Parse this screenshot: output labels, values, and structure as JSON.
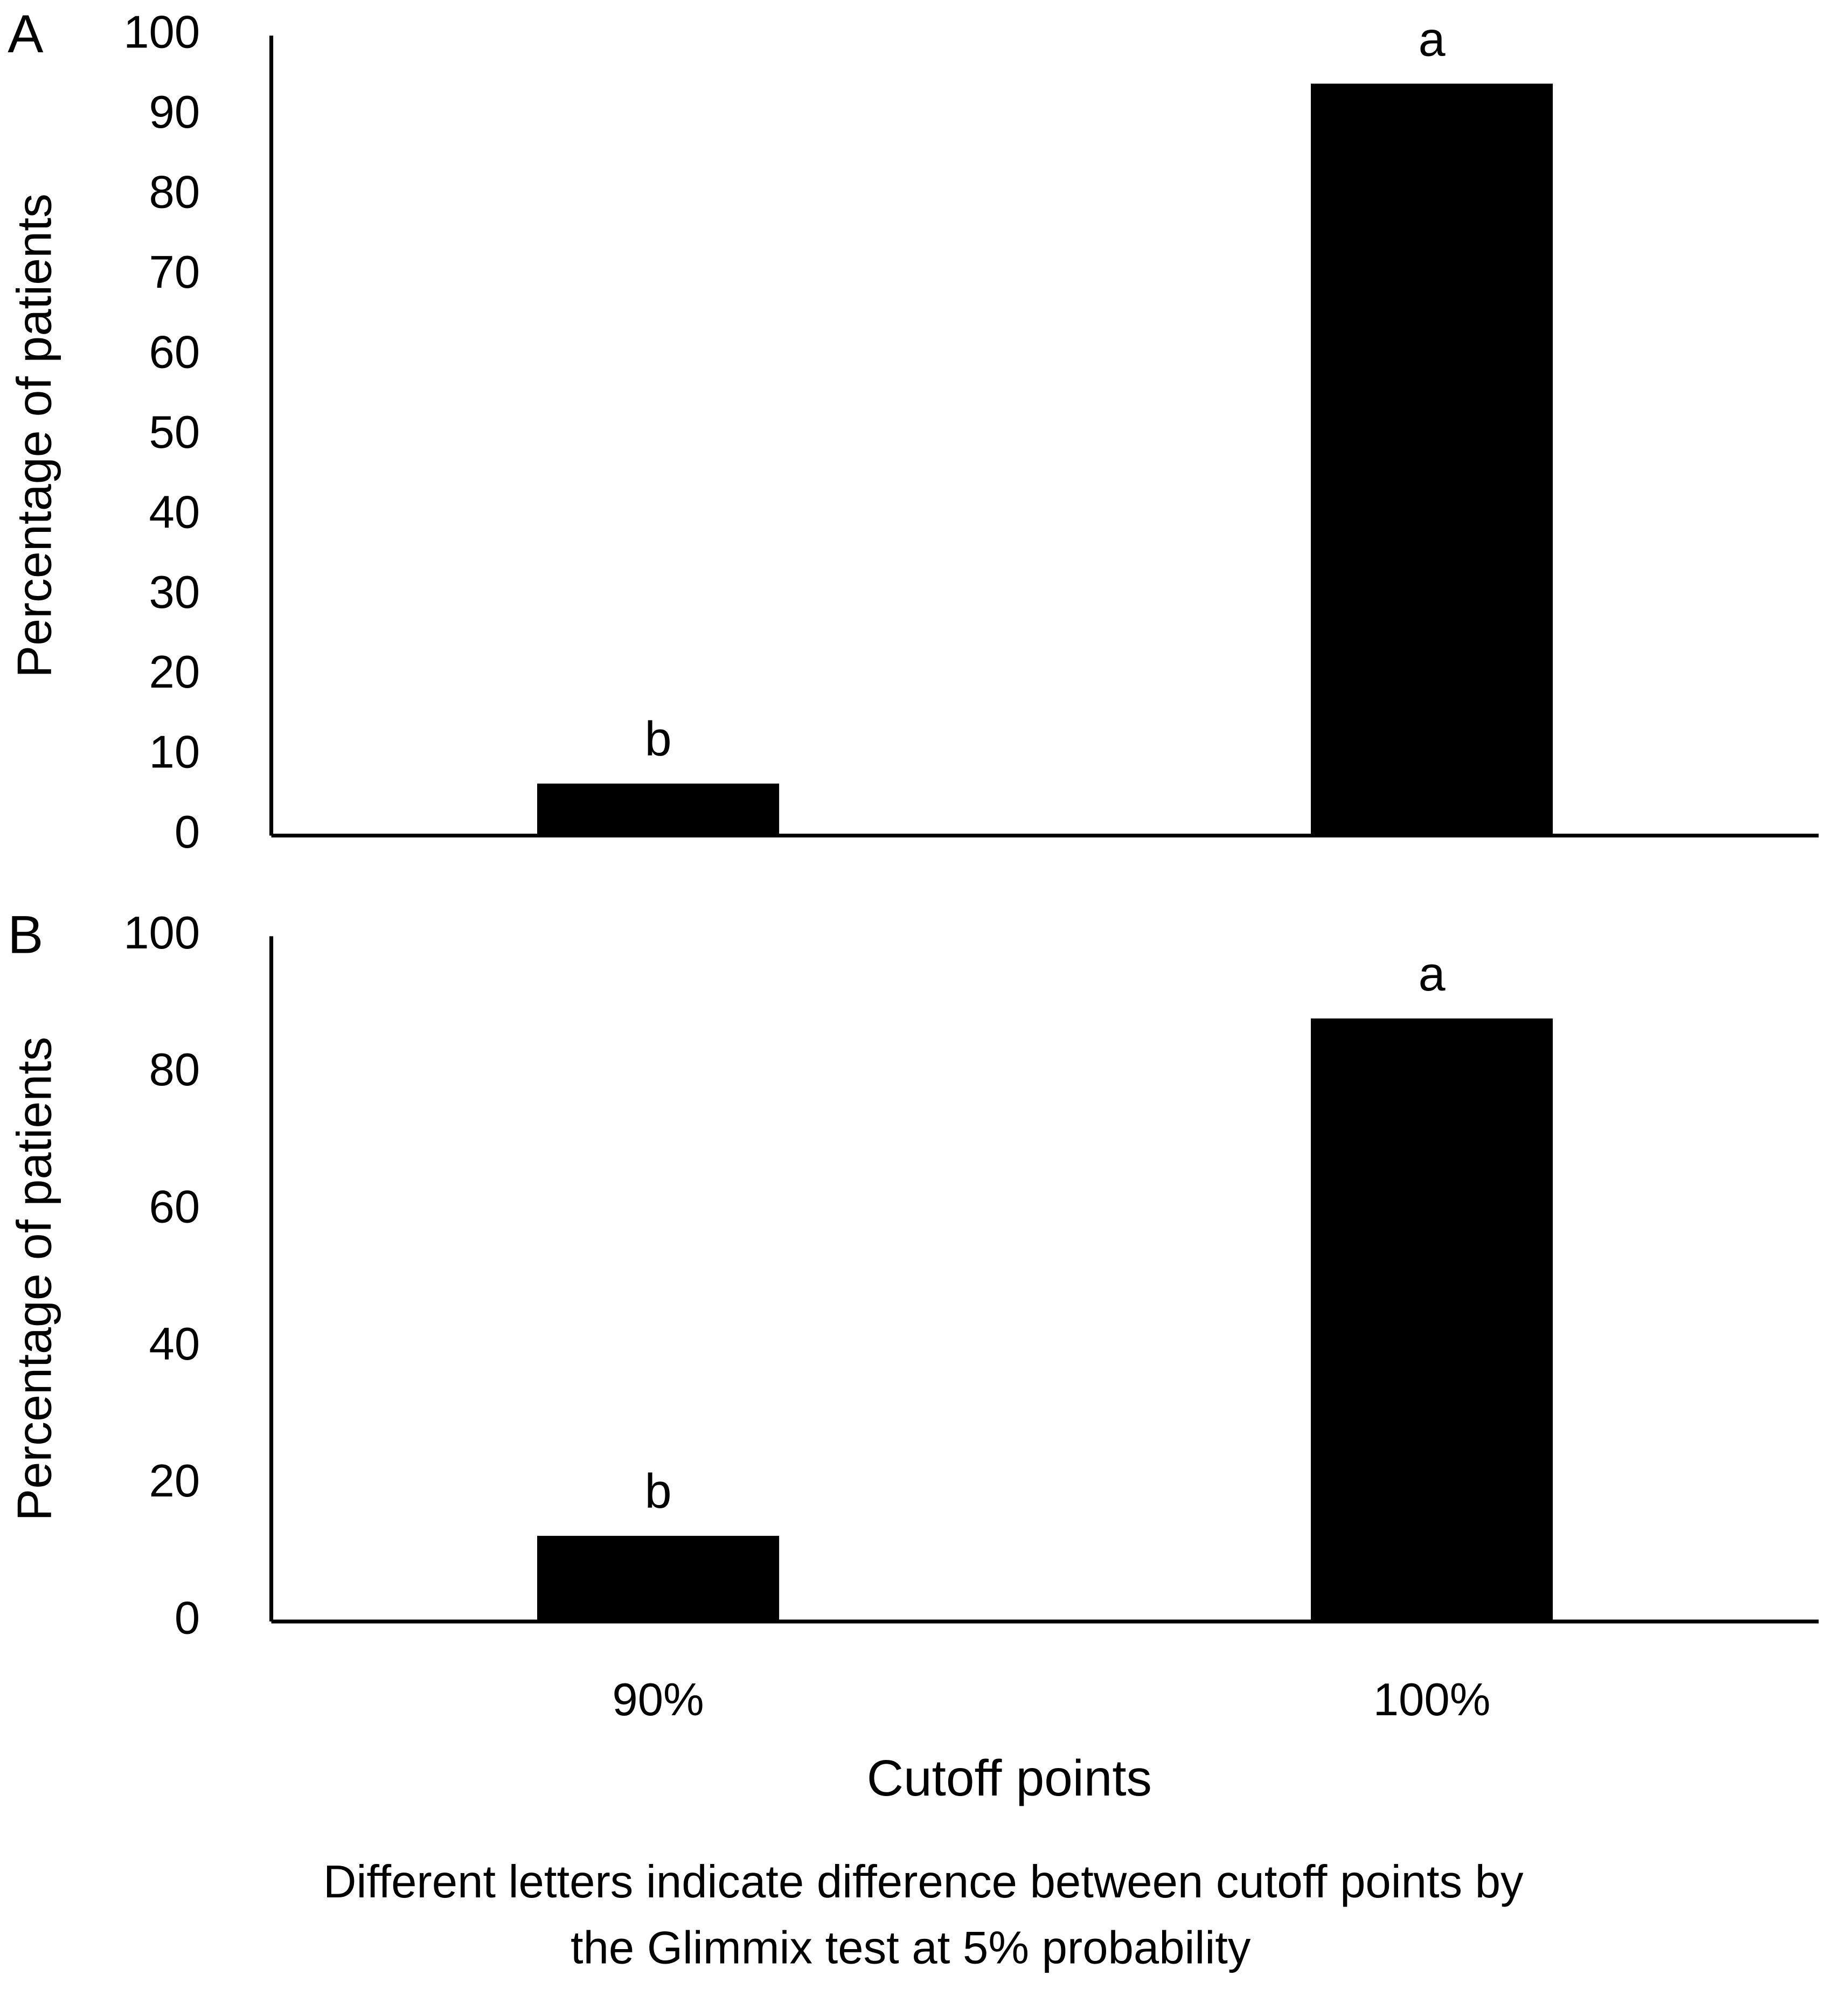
{
  "chart_data": [
    {
      "type": "bar",
      "panel": "A",
      "ylabel": "Percentage of patients",
      "categories": [
        null,
        null
      ],
      "values": [
        6.5,
        94
      ],
      "annotations": [
        "b",
        "a"
      ],
      "color": "#000000",
      "ylim": [
        0,
        100
      ],
      "yticks": [
        0,
        10,
        20,
        30,
        40,
        50,
        60,
        70,
        80,
        90,
        100
      ],
      "grid": false
    },
    {
      "type": "bar",
      "panel": "B",
      "ylabel": "Percentage of patients",
      "xlabel": "Cutoff points",
      "categories": [
        "90%",
        "100%"
      ],
      "values": [
        12.5,
        88
      ],
      "annotations": [
        "b",
        "a"
      ],
      "color": "#000000",
      "ylim": [
        0,
        100
      ],
      "yticks": [
        0,
        20,
        40,
        60,
        80,
        100
      ],
      "grid": false
    }
  ],
  "caption": [
    "Different letters indicate difference between cutoff points by",
    "the Glimmix test at 5% probability"
  ]
}
